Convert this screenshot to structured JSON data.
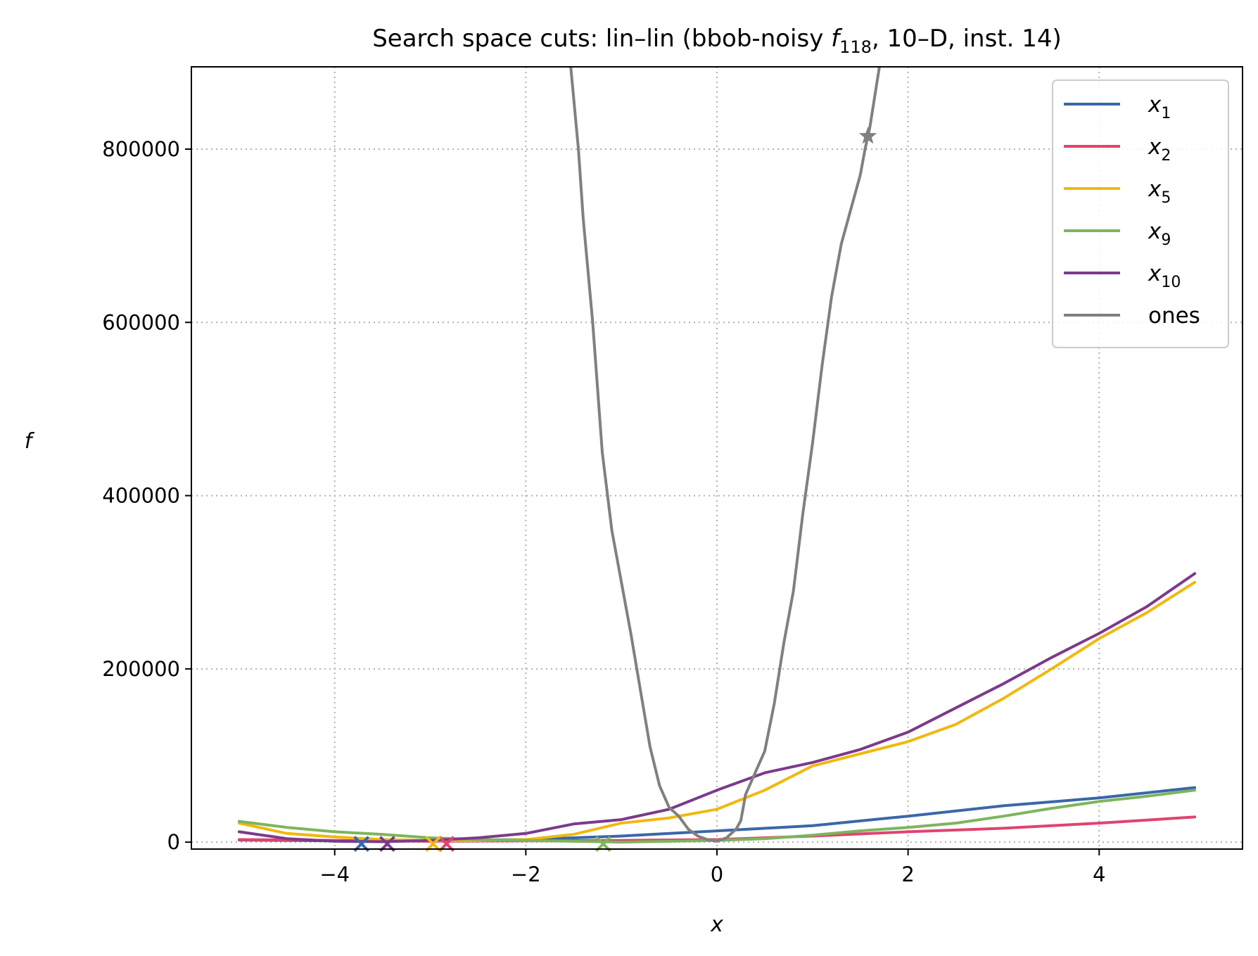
{
  "chart_data": {
    "type": "line",
    "title": {
      "prefix": "Search space cuts: lin–lin (bbob-noisy ",
      "fn_symbol": "f",
      "fn_subscript": "118",
      "suffix": ", 10–D, inst. 14)"
    },
    "xlabel": "x",
    "ylabel": "f",
    "xlim": [
      -5.5,
      5.5
    ],
    "ylim": [
      -8000,
      895000
    ],
    "xticks": [
      -4,
      -2,
      0,
      2,
      4
    ],
    "xtick_labels": [
      "−4",
      "−2",
      "0",
      "2",
      "4"
    ],
    "yticks": [
      0,
      200000,
      400000,
      600000,
      800000
    ],
    "ytick_labels": [
      "0",
      "200000",
      "400000",
      "600000",
      "800000"
    ],
    "grid": true,
    "legend_position": "top-right",
    "series": [
      {
        "name": "x",
        "name_subscript": "1",
        "color": "#3a67a8",
        "x": [
          -5,
          -4,
          -3,
          -2,
          -1,
          0,
          1,
          2,
          3,
          4,
          5
        ],
        "y": [
          2500,
          1500,
          2000,
          3000,
          7000,
          13000,
          19000,
          30000,
          42000,
          51000,
          63000
        ],
        "marker": {
          "type": "x",
          "x": -3.72,
          "y": -2000
        }
      },
      {
        "name": "x",
        "name_subscript": "2",
        "color": "#e0436f",
        "x": [
          -5,
          -4,
          -3,
          -2,
          -1,
          0,
          1,
          2,
          3,
          4,
          5
        ],
        "y": [
          3000,
          2000,
          1000,
          1500,
          2000,
          3000,
          7000,
          12000,
          16000,
          22000,
          29000
        ],
        "marker": {
          "type": "x",
          "x": -2.83,
          "y": -2000
        }
      },
      {
        "name": "x",
        "name_subscript": "5",
        "color": "#f1b80f",
        "x": [
          -5,
          -4.5,
          -4,
          -3.5,
          -3,
          -2.5,
          -2,
          -1.5,
          -1,
          -0.5,
          0,
          0.5,
          1,
          1.5,
          2,
          2.5,
          3,
          3.5,
          4,
          4.5,
          5
        ],
        "y": [
          22000,
          10000,
          6000,
          3000,
          2000,
          2000,
          3000,
          9000,
          22000,
          28000,
          38000,
          60000,
          88000,
          102000,
          116000,
          136000,
          166000,
          200000,
          235000,
          265000,
          300000
        ],
        "marker": {
          "type": "x",
          "x": -2.97,
          "y": -2000
        }
      },
      {
        "name": "x",
        "name_subscript": "9",
        "color": "#7db55c",
        "x": [
          -5,
          -4.5,
          -4,
          -3.5,
          -3,
          -2.5,
          -2,
          -1.5,
          -1,
          -0.5,
          0,
          0.5,
          1,
          1.5,
          2,
          2.5,
          3,
          3.5,
          4,
          4.5,
          5
        ],
        "y": [
          24000,
          17000,
          12000,
          9000,
          5000,
          3000,
          2000,
          1000,
          0,
          1000,
          2000,
          4000,
          8000,
          13000,
          17000,
          22000,
          30000,
          39000,
          47000,
          53000,
          60000
        ],
        "marker": {
          "type": "x",
          "x": -1.19,
          "y": -2000
        }
      },
      {
        "name": "x",
        "name_subscript": "10",
        "color": "#7b3a8c",
        "x": [
          -5,
          -4.5,
          -4,
          -3.5,
          -3,
          -2.5,
          -2,
          -1.5,
          -1,
          -0.5,
          0,
          0.5,
          1,
          1.5,
          2,
          2.5,
          3,
          3.5,
          4,
          4.5,
          5
        ],
        "y": [
          12000,
          4000,
          1000,
          500,
          2000,
          5000,
          10000,
          21000,
          26000,
          38000,
          60000,
          80000,
          92000,
          107000,
          127000,
          155000,
          183000,
          213000,
          241000,
          272000,
          310000
        ],
        "marker": {
          "type": "x",
          "x": -3.45,
          "y": -2000
        }
      },
      {
        "name": "ones",
        "name_subscript": "",
        "color": "#808080",
        "x": [
          -1.53,
          -1.45,
          -1.4,
          -1.3,
          -1.2,
          -1.1,
          -1.0,
          -0.9,
          -0.8,
          -0.7,
          -0.6,
          -0.5,
          -0.4,
          -0.3,
          -0.2,
          -0.1,
          0.0,
          0.1,
          0.2,
          0.25,
          0.3,
          0.4,
          0.5,
          0.6,
          0.7,
          0.8,
          0.9,
          1.0,
          1.1,
          1.2,
          1.3,
          1.4,
          1.5,
          1.55,
          1.6,
          1.65,
          1.7
        ],
        "y": [
          895000,
          800000,
          720000,
          600000,
          450000,
          360000,
          300000,
          240000,
          175000,
          110000,
          65000,
          40000,
          30000,
          15000,
          7000,
          3000,
          1000,
          5000,
          15000,
          25000,
          55000,
          80000,
          105000,
          160000,
          230000,
          290000,
          380000,
          460000,
          550000,
          630000,
          690000,
          730000,
          770000,
          800000,
          825000,
          860000,
          895000
        ],
        "marker": {
          "type": "star",
          "x": 1.58,
          "y": 815000
        }
      }
    ]
  }
}
